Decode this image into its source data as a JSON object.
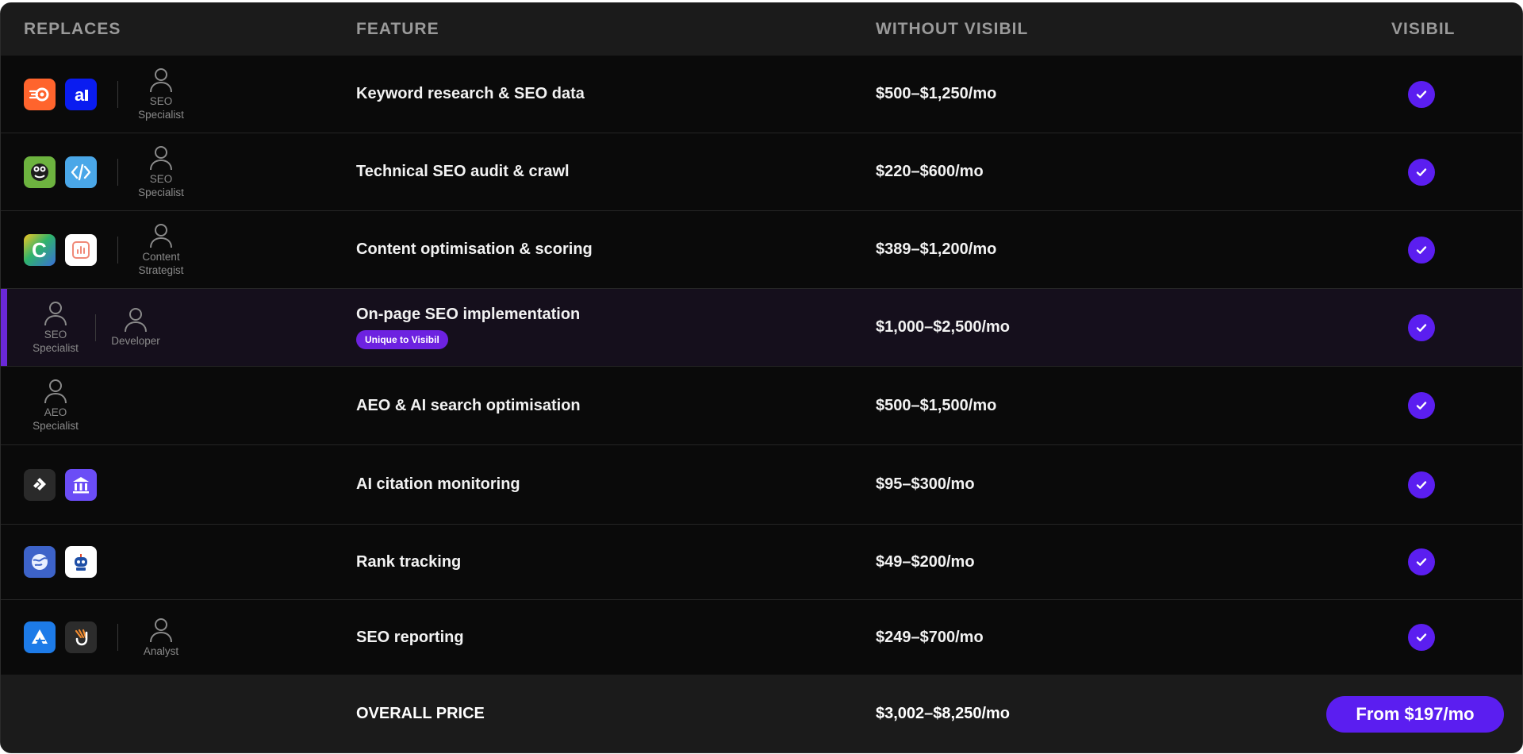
{
  "header": {
    "col_replaces": "REPLACES",
    "col_feature": "FEATURE",
    "col_without": "WITHOUT VISIBIL",
    "col_visibil": "VISIBIL"
  },
  "rows": [
    {
      "feature": "Keyword research & SEO data",
      "price": "$500–$1,250/mo",
      "logos": [
        "semrush-logo",
        "ahrefs-logo"
      ],
      "roles": [
        "SEO\nSpecialist"
      ]
    },
    {
      "feature": "Technical SEO audit & crawl",
      "price": "$220–$600/mo",
      "logos": [
        "screaming-frog-logo",
        "code-tool-logo"
      ],
      "roles": [
        "SEO\nSpecialist"
      ]
    },
    {
      "feature": "Content optimisation & scoring",
      "price": "$389–$1,200/mo",
      "logos": [
        "clearscope-logo",
        "content-chart-logo"
      ],
      "roles": [
        "Content\nStrategist"
      ]
    },
    {
      "feature": "On-page SEO implementation",
      "badge": "Unique to Visibil",
      "price": "$1,000–$2,500/mo",
      "roles": [
        "SEO\nSpecialist",
        "Developer"
      ]
    },
    {
      "feature": "AEO & AI search optimisation",
      "price": "$500–$1,500/mo",
      "roles": [
        "AEO\nSpecialist"
      ]
    },
    {
      "feature": "AI citation monitoring",
      "price": "$95–$300/mo",
      "logos": [
        "profound-logo",
        "institution-logo"
      ]
    },
    {
      "feature": "Rank tracking",
      "price": "$49–$200/mo",
      "logos": [
        "globe-tracker-logo",
        "robot-tracker-logo"
      ]
    },
    {
      "feature": "SEO reporting",
      "price": "$249–$700/mo",
      "logos": [
        "agency-analytics-logo",
        "reporting-tool-logo"
      ],
      "roles": [
        "Analyst"
      ]
    }
  ],
  "footer": {
    "label": "OVERALL PRICE",
    "total": "$3,002–$8,250/mo",
    "cta": "From $197/mo"
  },
  "colors": {
    "accent": "#5b1ef0",
    "badge": "#6d22e0",
    "highlight_bar": "#6a28d8"
  }
}
